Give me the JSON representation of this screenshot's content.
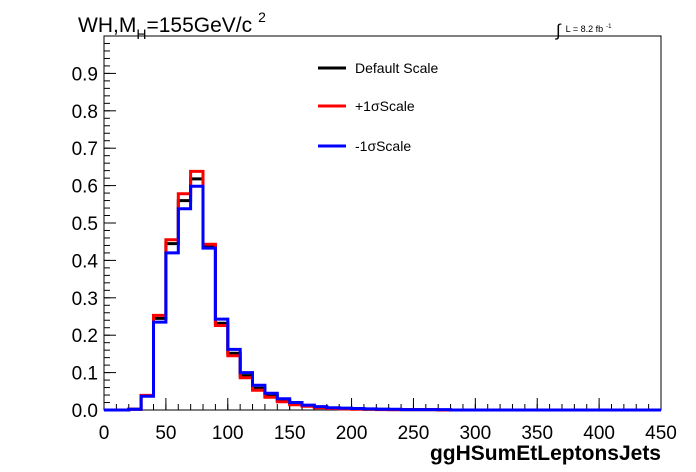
{
  "chart_data": {
    "type": "line",
    "title_main": "WH,M",
    "title_sub": "H",
    "title_rest": "=155GeV/c",
    "title_sup": "2",
    "lumi": {
      "integral": "∫",
      "text": "L = 8.2 fb",
      "sup": "-1"
    },
    "xlabel": "ggHSumEtLeptonsJets",
    "ylabel": "",
    "xlim": [
      0,
      450
    ],
    "ylim": [
      0,
      1.0
    ],
    "x_ticks": [
      "0",
      "50",
      "100",
      "150",
      "200",
      "250",
      "300",
      "350",
      "400",
      "450"
    ],
    "y_ticks": [
      "0.0",
      "0.1",
      "0.2",
      "0.3",
      "0.4",
      "0.5",
      "0.6",
      "0.7",
      "0.8",
      "0.9"
    ],
    "bin_width": 10,
    "x": [
      0,
      10,
      20,
      30,
      40,
      50,
      60,
      70,
      80,
      90,
      100,
      110,
      120,
      130,
      140,
      150,
      160,
      170,
      180,
      190,
      200,
      210,
      220,
      230,
      240,
      250,
      260,
      270,
      280,
      290,
      300,
      310,
      320,
      330,
      340,
      350,
      360,
      370,
      380,
      390,
      400,
      410,
      420,
      430,
      440
    ],
    "series": [
      {
        "name": "Default Scale",
        "color": "#000000",
        "values": [
          0,
          0,
          0.002,
          0.038,
          0.245,
          0.445,
          0.56,
          0.618,
          0.438,
          0.232,
          0.152,
          0.092,
          0.058,
          0.038,
          0.025,
          0.016,
          0.011,
          0.007,
          0.005,
          0.004,
          0.003,
          0.002,
          0.002,
          0.001,
          0.001,
          0.001,
          0.001,
          0,
          0,
          0,
          0,
          0,
          0,
          0,
          0,
          0,
          0,
          0,
          0,
          0,
          0,
          0,
          0,
          0,
          0
        ]
      },
      {
        "name": "+1σScale",
        "color": "#ff0000",
        "values": [
          0,
          0,
          0.002,
          0.039,
          0.253,
          0.455,
          0.578,
          0.638,
          0.443,
          0.226,
          0.145,
          0.086,
          0.053,
          0.034,
          0.022,
          0.014,
          0.01,
          0.006,
          0.004,
          0.003,
          0.002,
          0.002,
          0.001,
          0.001,
          0.001,
          0.001,
          0.001,
          0,
          0,
          0,
          0,
          0,
          0,
          0,
          0,
          0,
          0,
          0,
          0,
          0,
          0,
          0,
          0,
          0,
          0
        ]
      },
      {
        "name": "-1σScale",
        "color": "#0000ff",
        "values": [
          0,
          0,
          0.002,
          0.037,
          0.235,
          0.42,
          0.538,
          0.598,
          0.433,
          0.243,
          0.162,
          0.1,
          0.066,
          0.045,
          0.03,
          0.02,
          0.013,
          0.009,
          0.006,
          0.005,
          0.004,
          0.003,
          0.002,
          0.002,
          0.001,
          0.001,
          0.001,
          0.001,
          0,
          0,
          0,
          0,
          0,
          0,
          0,
          0,
          0,
          0,
          0,
          0,
          0,
          0,
          0,
          0,
          0
        ]
      }
    ],
    "legend_position": "top-right",
    "grid": false
  }
}
